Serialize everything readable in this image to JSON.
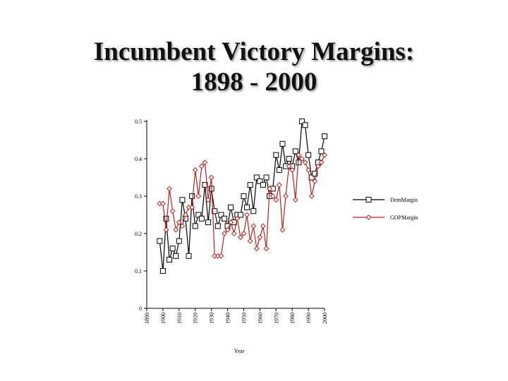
{
  "chart_data": {
    "type": "line",
    "title_lines": [
      "Incumbent Victory Margins:",
      "1898 - 2000"
    ],
    "xlabel": "Year",
    "ylabel": "",
    "xlim": [
      1890,
      2000
    ],
    "ylim": [
      0,
      0.5
    ],
    "x_ticks": [
      1890,
      1900,
      1910,
      1920,
      1930,
      1940,
      1950,
      1960,
      1970,
      1980,
      1990,
      2000
    ],
    "y_ticks": [
      0,
      0.1,
      0.2,
      0.3,
      0.4,
      0.5
    ],
    "y_tick_labels": [
      "0",
      "0.1",
      "0.2",
      "0.3",
      "0.4",
      "0.5"
    ],
    "grid": false,
    "legend_position": "right",
    "x": [
      1898,
      1900,
      1902,
      1904,
      1906,
      1908,
      1910,
      1912,
      1914,
      1916,
      1918,
      1920,
      1922,
      1924,
      1926,
      1928,
      1930,
      1932,
      1934,
      1936,
      1938,
      1940,
      1942,
      1944,
      1946,
      1948,
      1950,
      1952,
      1954,
      1956,
      1958,
      1960,
      1962,
      1964,
      1966,
      1968,
      1970,
      1972,
      1974,
      1976,
      1978,
      1980,
      1982,
      1984,
      1986,
      1988,
      1990,
      1992,
      1994,
      1996,
      1998,
      2000
    ],
    "series": [
      {
        "name": "DemMargin",
        "color": "#000000",
        "marker": "square",
        "values": [
          0.18,
          0.1,
          0.24,
          0.13,
          0.16,
          0.14,
          0.18,
          0.29,
          0.24,
          0.14,
          0.3,
          0.22,
          0.25,
          0.24,
          0.33,
          0.23,
          0.32,
          0.26,
          0.22,
          0.25,
          0.24,
          0.22,
          0.27,
          0.23,
          0.25,
          0.25,
          0.3,
          0.27,
          0.33,
          0.26,
          0.35,
          0.34,
          0.33,
          0.35,
          0.3,
          0.32,
          0.41,
          0.37,
          0.44,
          0.38,
          0.4,
          0.38,
          0.42,
          0.39,
          0.5,
          0.49,
          0.41,
          0.35,
          0.36,
          0.39,
          0.42,
          0.46
        ]
      },
      {
        "name": "GOPMargin",
        "color": "#b22222",
        "marker": "diamond",
        "values": [
          0.28,
          0.28,
          0.21,
          0.32,
          0.26,
          0.21,
          0.23,
          0.22,
          0.25,
          0.27,
          0.27,
          0.37,
          0.3,
          0.38,
          0.39,
          0.29,
          0.35,
          0.14,
          0.14,
          0.14,
          0.2,
          0.21,
          0.23,
          0.2,
          0.24,
          0.19,
          0.2,
          0.25,
          0.18,
          0.22,
          0.16,
          0.19,
          0.22,
          0.16,
          0.32,
          0.3,
          0.29,
          0.33,
          0.21,
          0.3,
          0.38,
          0.37,
          0.29,
          0.41,
          0.4,
          0.39,
          0.37,
          0.3,
          0.34,
          0.38,
          0.39,
          0.41
        ]
      }
    ]
  }
}
